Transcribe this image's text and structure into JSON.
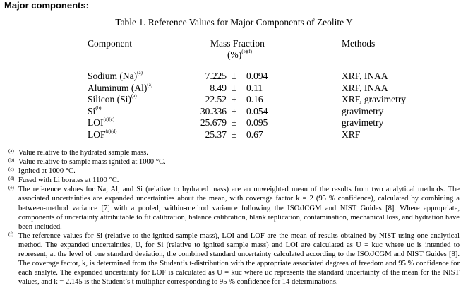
{
  "heading": "Major components:",
  "table": {
    "caption": "Table 1.  Reference Values for Major Components of Zeolite Y",
    "headers": {
      "component": "Component",
      "mass_fraction": "Mass Fraction",
      "unit": "(%)",
      "unit_marks": "(e)(f)",
      "methods": "Methods"
    },
    "rows": [
      {
        "component": "Sodium (Na)",
        "mark": "(a)",
        "value": "7.225",
        "pm": "±",
        "unc": "0.094",
        "methods": "XRF, INAA"
      },
      {
        "component": "Aluminum (Al)",
        "mark": "(a)",
        "value": "8.49",
        "pm": "±",
        "unc": "0.11",
        "methods": "XRF, INAA"
      },
      {
        "component": "Silicon (Si)",
        "mark": "(a)",
        "value": "22.52",
        "pm": "±",
        "unc": "0.16",
        "methods": "XRF, gravimetry"
      },
      {
        "component": "Si",
        "mark": "(b)",
        "value": "30.336",
        "pm": "±",
        "unc": "0.054",
        "methods": "gravimetry"
      },
      {
        "component": "LOI",
        "mark": "(a)(c)",
        "value": "25.679",
        "pm": "±",
        "unc": "0.095",
        "methods": "gravimetry"
      },
      {
        "component": "LOF",
        "mark": "(a)(d)",
        "value": "25.37",
        "pm": "±",
        "unc": "0.67",
        "methods": "XRF"
      }
    ]
  },
  "footnotes": [
    {
      "mark": "(a)",
      "text": "Value relative to the hydrated sample mass."
    },
    {
      "mark": "(b)",
      "text": "Value relative to sample mass ignited at 1000 °C."
    },
    {
      "mark": "(c)",
      "text": "Ignited at 1000 °C."
    },
    {
      "mark": "(d)",
      "text": "Fused with Li borates at 1100 °C."
    },
    {
      "mark": "(e)",
      "text": "The reference values for Na, Al, and Si (relative to hydrated mass) are an unweighted mean of the results from two analytical methods.  The associated uncertainties are expanded uncertainties about the mean, with coverage factor k = 2 (95 % confidence), calculated by combining a between-method variance [7] with a pooled, within-method variance following the ISO/JCGM and NIST Guides [8].  Where appropriate, components of uncertainty attributable to fit calibration, balance calibration, blank replication, contamination, mechanical loss, and hydration have been included."
    },
    {
      "mark": "(f)",
      "text": "The reference values for Si (relative to the ignited sample mass), LOI and LOF are the mean of results obtained by NIST using one analytical method.  The expanded uncertainties, U, for Si (relative to ignited sample mass) and LOI are calculated as U = kuc where uc is intended to represent, at the level of one standard deviation, the combined standard uncertainty calculated according to the ISO/JCGM and NIST Guides [8].  The coverage factor, k, is determined from the Student’s t-distribution with the appropriate associated degrees of freedom and 95 % confidence for each analyte.  The expanded uncertainty for LOF is calculated as U = kuc where uc represents the standard uncertainty of the mean for the NIST values, and k = 2.145 is the Student’s t multiplier corresponding to 95 % confidence for 14 determinations."
    }
  ]
}
